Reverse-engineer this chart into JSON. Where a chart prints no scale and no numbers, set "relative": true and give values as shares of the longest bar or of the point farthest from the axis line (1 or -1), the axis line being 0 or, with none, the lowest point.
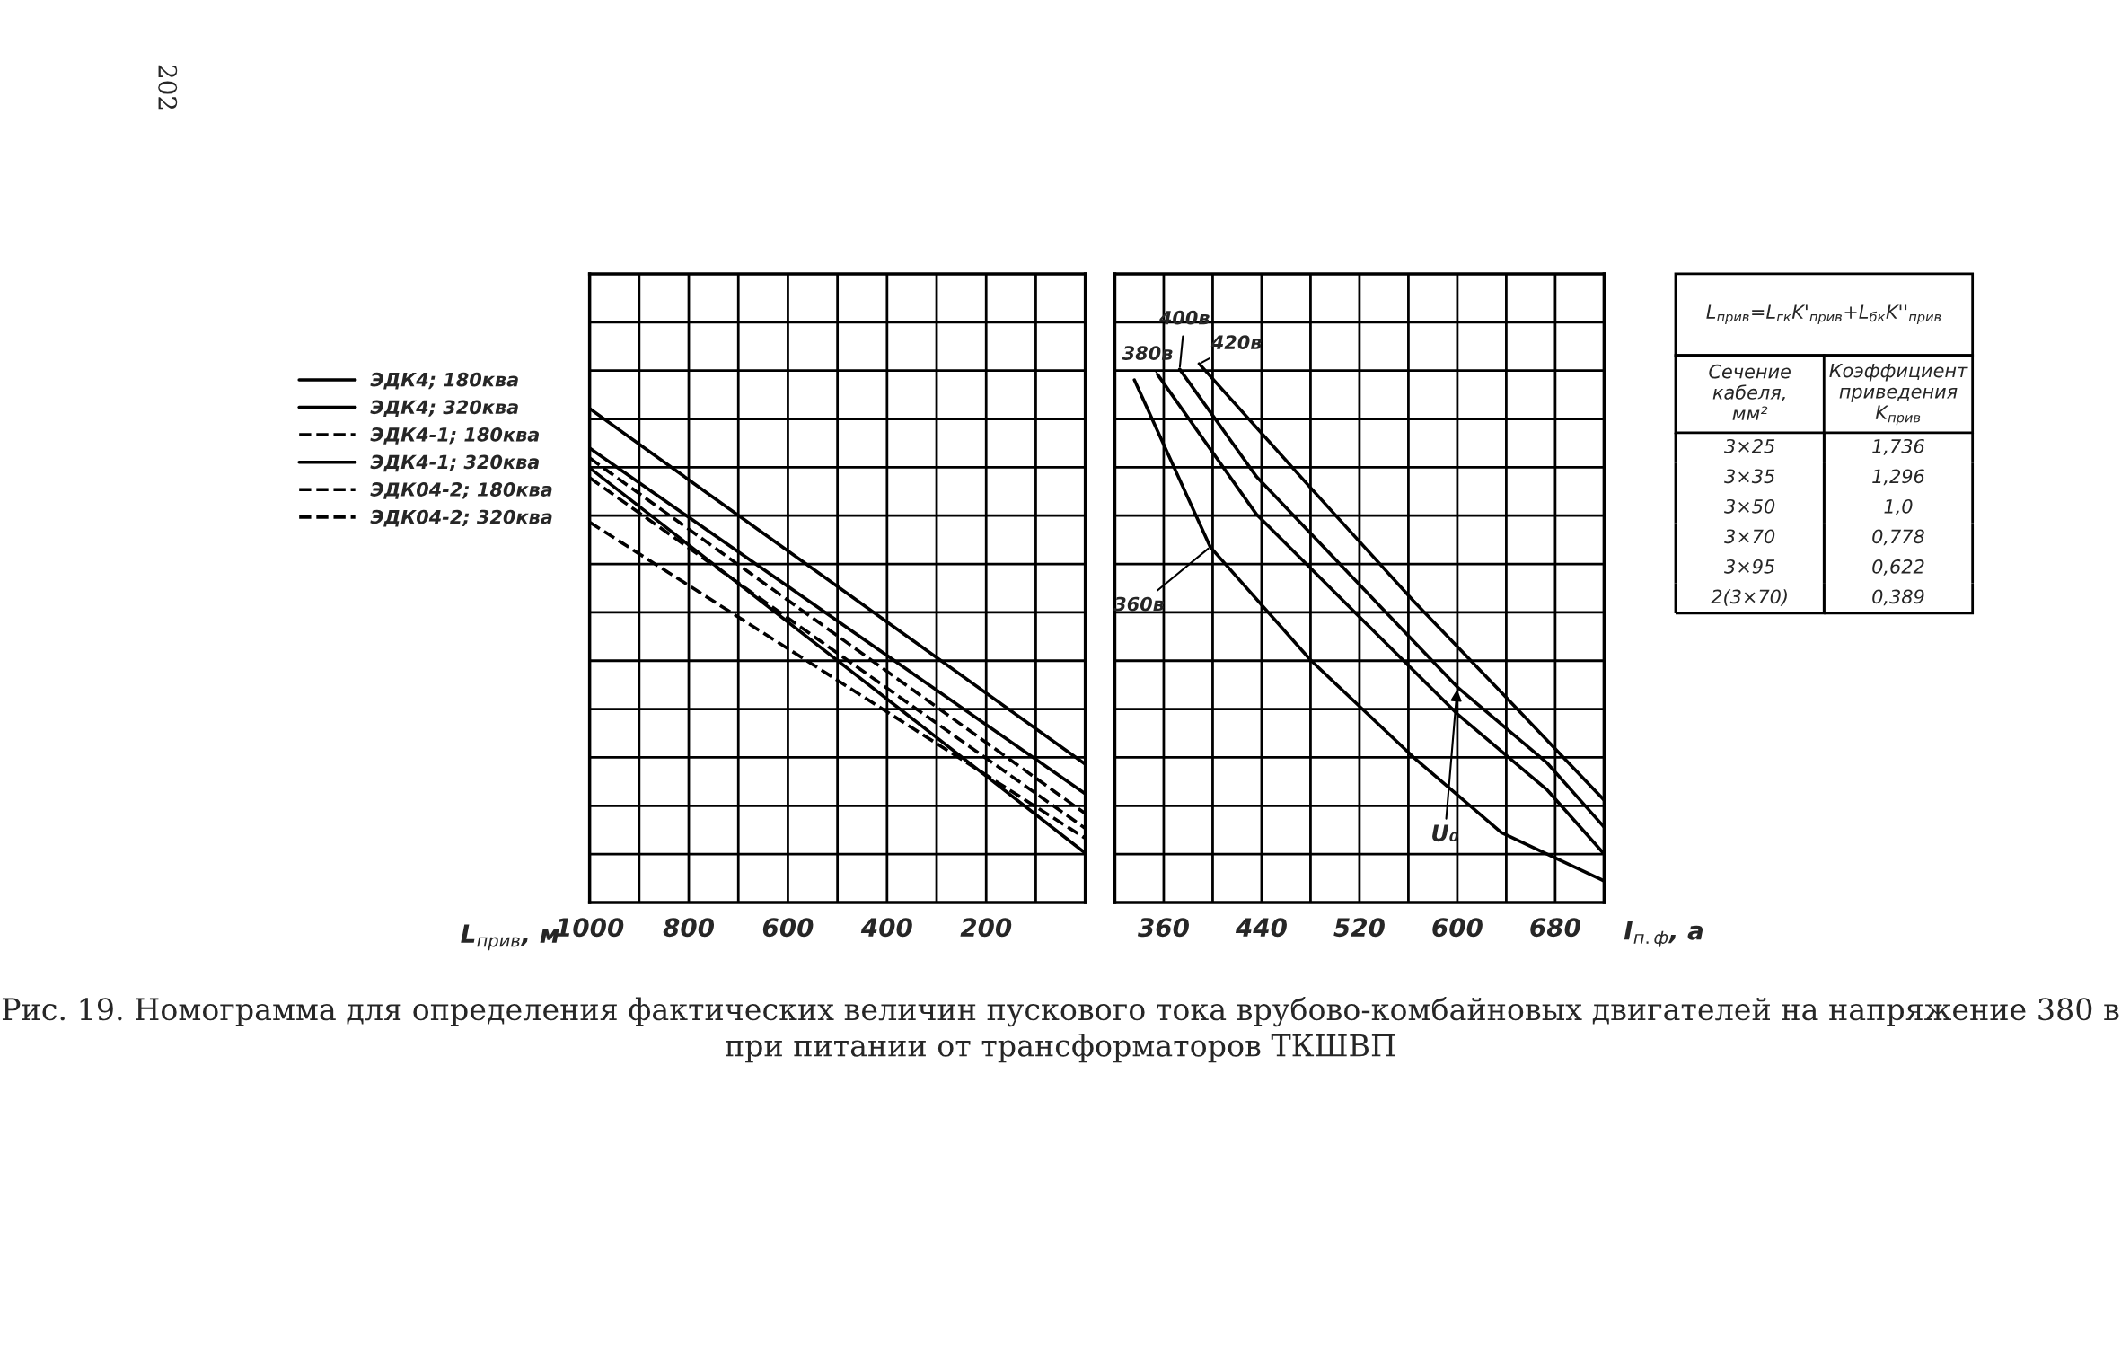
{
  "chart_data": [
    {
      "type": "line",
      "relative": true,
      "xlabel": "L$_{прив}$, м",
      "xlim": [
        1000,
        0
      ],
      "xticks": [
        1000,
        {
          "value": 900,
          "label": null
        },
        800,
        {
          "value": 700,
          "label": null
        },
        600,
        {
          "value": 500,
          "label": null
        },
        400,
        {
          "value": 300,
          "label": null
        },
        200,
        {
          "value": 100,
          "label": null
        },
        {
          "value": 0,
          "label": null
        }
      ],
      "grid": true,
      "tick_labels": "x",
      "legend": "left",
      "annotations": [
        "Рис. 19. Номограмма для определения фактических величин пускового тока врубово-комбайновых двигателей на напряжение 380 в при питании от трансформаторов ТКШВП",
        "202"
      ],
      "series": [
        {
          "name": "ЭДК4; 180ква",
          "color": "#000000",
          "line_style": "solid",
          "x": [
            1000,
            0
          ],
          "values": [
            1.0,
            0.28
          ]
        },
        {
          "name": "ЭДК4; 320ква",
          "color": "#000000",
          "line_style": "solid",
          "x": [
            1000,
            0
          ],
          "values": [
            0.92,
            0.22
          ]
        },
        {
          "name": "ЭДК4-1; 180ква",
          "color": "#000000",
          "line_style": "dashed",
          "x": [
            1000,
            0
          ],
          "values": [
            0.9,
            0.18
          ]
        },
        {
          "name": "ЭДК4-1; 320ква",
          "color": "#000000",
          "line_style": "solid",
          "x": [
            1000,
            0
          ],
          "values": [
            0.88,
            0.1
          ]
        },
        {
          "name": "ЭДК04-2; 180ква",
          "color": "#000000",
          "line_style": "dashed",
          "x": [
            1000,
            0
          ],
          "values": [
            0.86,
            0.15
          ]
        },
        {
          "name": "ЭДК04-2; 320ква",
          "color": "#000000",
          "line_style": "dashed",
          "x": [
            1000,
            0
          ],
          "values": [
            0.77,
            0.13
          ]
        }
      ]
    },
    {
      "type": "line",
      "relative": true,
      "xlabel": "I$_{п.ф}$, а",
      "xlim": [
        320,
        720
      ],
      "xticks": [
        {
          "value": 320,
          "label": null
        },
        360,
        {
          "value": 400,
          "label": null
        },
        440,
        {
          "value": 480,
          "label": null
        },
        520,
        {
          "value": 560,
          "label": null
        },
        600,
        {
          "value": 640,
          "label": null
        },
        680,
        {
          "value": 720,
          "label": null
        }
      ],
      "grid": true,
      "tick_labels": "x",
      "annotations": [
        {
          "text": "U₀",
          "x": 600,
          "y": 0.4
        }
      ],
      "series": [
        {
          "name": "360в",
          "color": "#000000",
          "line_style": "solid",
          "x": [
            336,
            398,
            480,
            564,
            636,
            720
          ],
          "values": [
            0.97,
            0.66,
            0.45,
            0.27,
            0.13,
            0.04
          ]
        },
        {
          "name": "380в",
          "color": "#000000",
          "line_style": "solid",
          "x": [
            355,
            436,
            520,
            600,
            673,
            720
          ],
          "values": [
            0.98,
            0.72,
            0.53,
            0.35,
            0.21,
            0.09
          ]
        },
        {
          "name": "400в",
          "color": "#000000",
          "line_style": "solid",
          "x": [
            373,
            436,
            520,
            600,
            673,
            720
          ],
          "values": [
            0.99,
            0.79,
            0.59,
            0.4,
            0.26,
            0.14
          ]
        },
        {
          "name": "420в",
          "color": "#000000",
          "line_style": "solid",
          "x": [
            389,
            480,
            564,
            636,
            720
          ],
          "values": [
            1.0,
            0.77,
            0.56,
            0.39,
            0.19
          ]
        }
      ]
    },
    {
      "type": "other",
      "annotations": [
        "L$_{прив}$=L$_{гк}$K'$_{прив}$+L$_{бк}$K''$_{прив}$",
        "Сечение кабеля, мм²",
        "Коэффициент приведения K$_{прив}$",
        "3×25",
        "1,736",
        "3×35",
        "1,296",
        "3×50",
        "1,0",
        "3×70",
        "0,778",
        "3×95",
        "0,622",
        "2(3×70)",
        "0,389"
      ]
    }
  ]
}
